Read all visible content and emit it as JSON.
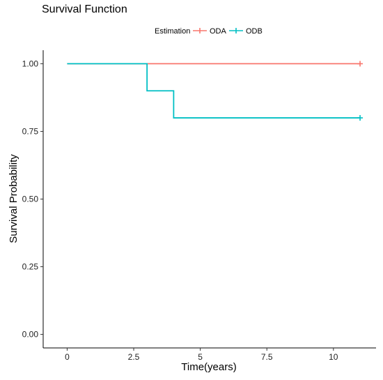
{
  "chart_data": {
    "type": "line",
    "step": true,
    "title": "Survival Function",
    "xlabel": "Time(years)",
    "ylabel": "Survival Probability",
    "xlim": [
      -0.9,
      11.6
    ],
    "ylim": [
      -0.05,
      1.05
    ],
    "xticks": [
      0,
      2.5,
      5,
      7.5,
      10
    ],
    "xtick_labels": [
      "0",
      "2.5",
      "5",
      "7.5",
      "10"
    ],
    "yticks": [
      0,
      0.25,
      0.5,
      0.75,
      1
    ],
    "ytick_labels": [
      "0.00",
      "0.25",
      "0.50",
      "0.75",
      "1.00"
    ],
    "grid": false,
    "legend": {
      "title": "Estimation",
      "placement": "top-center"
    },
    "series": [
      {
        "name": "ODA",
        "color": "#F8766D",
        "x": [
          0,
          11
        ],
        "y": [
          1.0,
          1.0
        ],
        "censor": [
          {
            "x": 11,
            "y": 1.0
          }
        ]
      },
      {
        "name": "ODB",
        "color": "#00BFC4",
        "x": [
          0,
          3,
          4,
          11
        ],
        "y": [
          1.0,
          0.9,
          0.8,
          0.8
        ],
        "censor": [
          {
            "x": 11,
            "y": 0.8
          }
        ]
      }
    ]
  }
}
